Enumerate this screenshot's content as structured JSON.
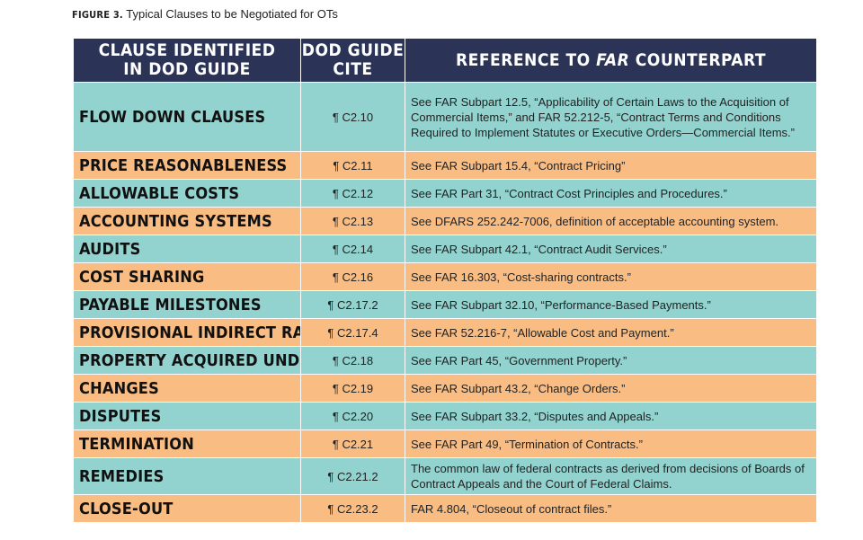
{
  "caption": {
    "figure_label": "FIGURE 3.",
    "text": "Typical Clauses to be Negotiated for OTs"
  },
  "table": {
    "headers": {
      "clause_line1": "Clause Identified",
      "clause_line2": "in DOD Guide",
      "cite_line1": "DOD Guide",
      "cite_line2": "Cite",
      "ref_prefix": "Reference to",
      "ref_far": "FAR",
      "ref_suffix": "Counterpart"
    },
    "rows": [
      {
        "clause": "FLOW DOWN CLAUSES",
        "cite": "¶ C2.10",
        "reference": "See FAR Subpart 12.5, “Applicability of Certain Laws to the Acquisition of Commercial Items,” and FAR 52.212-5, “Contract Terms and Conditions Required to Implement Statutes or Executive Orders—Commercial Items.”"
      },
      {
        "clause": "PRICE REASONABLENESS",
        "cite": "¶ C2.11",
        "reference": "See FAR Subpart 15.4, “Contract Pricing”"
      },
      {
        "clause": "ALLOWABLE COSTS",
        "cite": "¶ C2.12",
        "reference": "See FAR Part 31, “Contract Cost Principles and Procedures.”"
      },
      {
        "clause": "ACCOUNTING SYSTEMS",
        "cite": "¶ C2.13",
        "reference": "See DFARS 252.242-7006, definition of acceptable accounting system."
      },
      {
        "clause": "AUDITS",
        "cite": "¶ C2.14",
        "reference": "See FAR Subpart 42.1, “Contract Audit Services.”"
      },
      {
        "clause": "COST SHARING",
        "cite": "¶ C2.16",
        "reference": "See FAR 16.303, “Cost-sharing contracts.”"
      },
      {
        "clause": "PAYABLE MILESTONES",
        "cite": "¶ C2.17.2",
        "reference": "See FAR Subpart 32.10, “Performance-Based Payments.”"
      },
      {
        "clause": "PROVISIONAL INDIRECT RATES",
        "cite": "¶ C2.17.4",
        "reference": "See FAR 52.216-7, “Allowable Cost and Payment.”"
      },
      {
        "clause": "PROPERTY ACQUIRED UNDER OT",
        "cite": "¶ C2.18",
        "reference": "See FAR Part 45, “Government Property.”"
      },
      {
        "clause": "CHANGES",
        "cite": "¶ C2.19",
        "reference": "See FAR Subpart 43.2, “Change Orders.”"
      },
      {
        "clause": "DISPUTES",
        "cite": "¶ C2.20",
        "reference": "See FAR Subpart 33.2, “Disputes and Appeals.”"
      },
      {
        "clause": "TERMINATION",
        "cite": "¶ C2.21",
        "reference": "See FAR Part 49, “Termination of Contracts.”"
      },
      {
        "clause": "REMEDIES",
        "cite": "¶ C2.21.2",
        "reference": "The common law of federal contracts as derived from decisions of Boards of Contract Appeals and the Court of Federal Claims."
      },
      {
        "clause": "CLOSE-OUT",
        "cite": "¶ C2.23.2",
        "reference": "FAR 4.804, “Closeout of contract files.”"
      }
    ]
  }
}
